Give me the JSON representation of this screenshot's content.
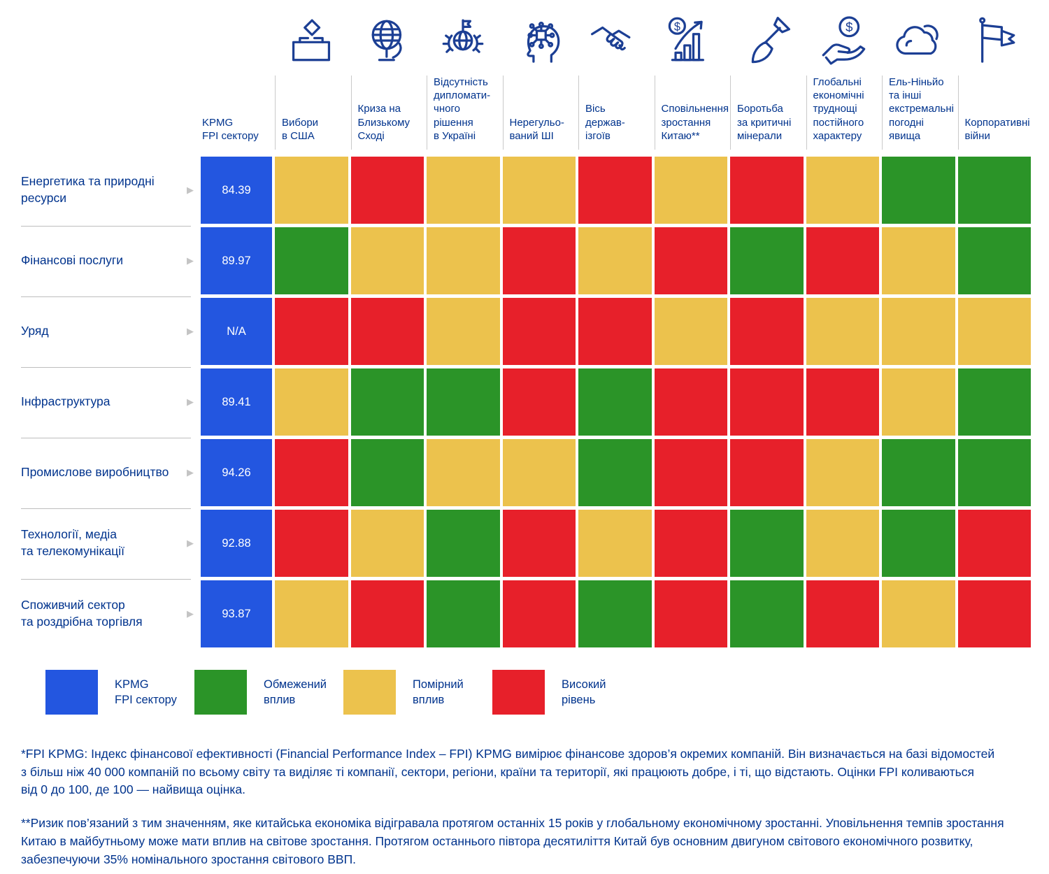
{
  "palette": {
    "fpi_blue": "#2356E0",
    "limited_green": "#2B9428",
    "moderate_yellow": "#ECC24D",
    "high_red": "#E7202A",
    "text_blue": "#00338D",
    "icon_navy": "#1C3F94"
  },
  "chart_data": {
    "type": "heatmap",
    "title": "",
    "fpi_color": "#2356E0",
    "impact_levels": {
      "limited": {
        "label": "Обмежений вплив",
        "color": "#2B9428"
      },
      "moderate": {
        "label": "Помірний вплив",
        "color": "#ECC24D"
      },
      "high": {
        "label": "Високий рівень",
        "color": "#E7202A"
      }
    },
    "columns": [
      {
        "key": "fpi",
        "label": "KPMG\nFPI сектору",
        "icon": null
      },
      {
        "key": "us-elections",
        "label": "Вибори\nв США",
        "icon": "ballot-box-icon"
      },
      {
        "key": "middle-east",
        "label": "Криза на\nБлизькому\nСході",
        "icon": "globe-icon"
      },
      {
        "key": "ukraine",
        "label": "Відсутність\nдипломати-\nчного\nрішення\nв Україні",
        "icon": "diplomacy-globe-flag-icon"
      },
      {
        "key": "ai",
        "label": "Нерегульо-\nваний ШІ",
        "icon": "ai-head-circuit-icon"
      },
      {
        "key": "rogue-states",
        "label": "Вісь\nдержав-ізгоїв",
        "icon": "handshake-icon"
      },
      {
        "key": "china-slowdown",
        "label": "Сповільнення\nзростання\nКитаю**",
        "icon": "growth-chart-dollar-icon"
      },
      {
        "key": "critical-minerals",
        "label": "Боротьба\nза критичні\nмінерали",
        "icon": "shovel-icon"
      },
      {
        "key": "global-economy",
        "label": "Глобальні\nекономічні\nтруднощі\nпостійного\nхарактеру",
        "icon": "hand-dollar-icon"
      },
      {
        "key": "el-nino",
        "label": "Ель-Ніньйо\nта інші\nекстремальні\nпогодні\nявища",
        "icon": "clouds-icon"
      },
      {
        "key": "corporate-wars",
        "label": "Корпоративні\nвійни",
        "icon": "battle-flags-icon"
      }
    ],
    "rows": [
      {
        "label": "Енергетика та природні\nресурси",
        "fpi": "84.39",
        "impacts": [
          "moderate",
          "high",
          "moderate",
          "moderate",
          "high",
          "moderate",
          "high",
          "moderate",
          "limited",
          "limited"
        ]
      },
      {
        "label": "Фінансові послуги",
        "fpi": "89.97",
        "impacts": [
          "limited",
          "moderate",
          "moderate",
          "high",
          "moderate",
          "high",
          "limited",
          "high",
          "moderate",
          "limited"
        ]
      },
      {
        "label": "Уряд",
        "fpi": "N/A",
        "impacts": [
          "high",
          "high",
          "moderate",
          "high",
          "high",
          "moderate",
          "high",
          "moderate",
          "moderate",
          "moderate"
        ]
      },
      {
        "label": "Інфраструктура",
        "fpi": "89.41",
        "impacts": [
          "moderate",
          "limited",
          "limited",
          "high",
          "limited",
          "high",
          "high",
          "high",
          "moderate",
          "limited"
        ]
      },
      {
        "label": "Промислове виробництво",
        "fpi": "94.26",
        "impacts": [
          "high",
          "limited",
          "moderate",
          "moderate",
          "limited",
          "high",
          "high",
          "moderate",
          "limited",
          "limited"
        ]
      },
      {
        "label": "Технології, медіа\nта телекомунікації",
        "fpi": "92.88",
        "impacts": [
          "high",
          "moderate",
          "limited",
          "high",
          "moderate",
          "high",
          "limited",
          "moderate",
          "limited",
          "high"
        ]
      },
      {
        "label": "Споживчий сектор\nта роздрібна торгівля",
        "fpi": "93.87",
        "impacts": [
          "moderate",
          "high",
          "limited",
          "high",
          "limited",
          "high",
          "limited",
          "high",
          "moderate",
          "high"
        ]
      }
    ]
  },
  "legend": [
    {
      "label": "KPMG\nFPI сектору",
      "color": "#2356E0"
    },
    {
      "label": "Обмежений\nвплив",
      "color": "#2B9428"
    },
    {
      "label": "Помірний\nвплив",
      "color": "#ECC24D"
    },
    {
      "label": "Високий\nрівень",
      "color": "#E7202A"
    }
  ],
  "footnotes": {
    "fpi": "*FPI KPMG: Індекс фінансової ефективності (Financial Performance Index – FPI) KPMG вимірює фінансове здоров’я окремих компаній. Він визначається на базі відомостей\nз більш ніж 40 000 компаній по всьому світу та виділяє ті компанії, сектори, регіони, країни та території, які працюють добре, і ті, що відстають. Оцінки FPI коливаються\nвід 0 до 100, де 100 — найвища оцінка.",
    "china": "**Ризик пов’язаний з тим значенням, яке китайська економіка відігравала протягом останніх 15 років у глобальному економічному зростанні. Уповільнення темпів зростання\nКитаю в майбутньому може мати вплив на світове зростання. Протягом останнього півтора десятиліття Китай був основним двигуном світового економічного розвитку,\nзабезпечуючи 35% номінального зростання світового ВВП."
  }
}
